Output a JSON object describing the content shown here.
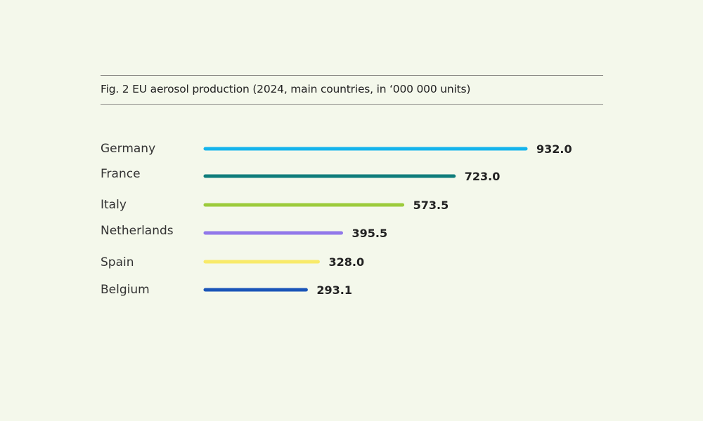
{
  "chart_data": {
    "type": "bar",
    "orientation": "horizontal",
    "title": "Fig. 2 EU aerosol production (2024, main countries, in ‘000 000 units)",
    "categories": [
      "Germany",
      "France",
      "Italy",
      "Netherlands",
      "Spain",
      "Belgium"
    ],
    "values": [
      932.0,
      723.0,
      573.5,
      395.5,
      328.0,
      293.1
    ],
    "value_labels": [
      "932.0",
      "723.0",
      "573.5",
      "395.5",
      "328.0",
      "293.1"
    ],
    "colors": [
      "#14b4ec",
      "#0e7d7b",
      "#9ccb3b",
      "#9178ea",
      "#f8ea6a",
      "#1a55b8"
    ],
    "xlim": [
      0,
      932
    ],
    "grid": false,
    "legend": "none",
    "background": "#f4f8eb"
  }
}
